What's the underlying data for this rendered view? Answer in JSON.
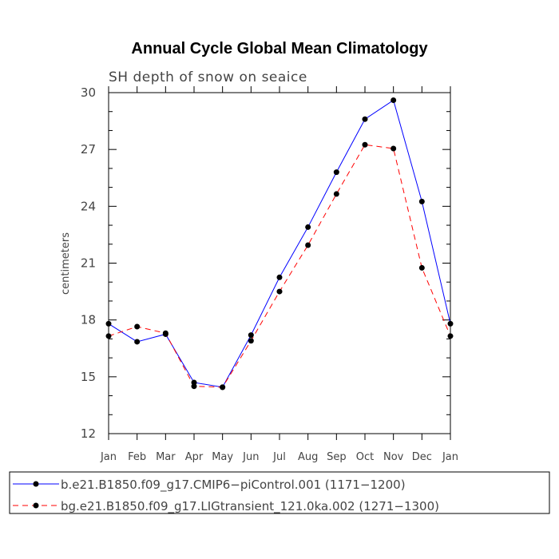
{
  "chart_data": {
    "type": "line",
    "title": "Annual Cycle Global Mean Climatology",
    "subtitle": "SH depth of snow on seaice",
    "xlabel": "",
    "ylabel": "centimeters",
    "ylim": [
      12,
      30
    ],
    "yticks": [
      "12",
      "15",
      "18",
      "21",
      "24",
      "27",
      "30"
    ],
    "categories": [
      "Jan",
      "Feb",
      "Mar",
      "Apr",
      "May",
      "Jun",
      "Jul",
      "Aug",
      "Sep",
      "Oct",
      "Nov",
      "Dec",
      "Jan"
    ],
    "grid": false,
    "legend_position": "bottom",
    "series": [
      {
        "name": "b.e21.B1850.f09_g17.CMIP6−piControl.001 (1171−1200)",
        "color": "#0000ff",
        "dash": "solid",
        "values": [
          17.8,
          16.85,
          17.25,
          14.7,
          14.45,
          17.2,
          20.25,
          22.9,
          25.8,
          28.6,
          29.6,
          24.25,
          17.8
        ]
      },
      {
        "name": "bg.e21.B1850.f09_g17.LIGtransient_121.0ka.002 (1271−1300)",
        "color": "#ff0000",
        "dash": "dashed",
        "values": [
          17.15,
          17.65,
          17.3,
          14.5,
          14.45,
          16.9,
          19.5,
          21.95,
          24.65,
          27.25,
          27.05,
          20.75,
          17.15
        ]
      }
    ]
  }
}
